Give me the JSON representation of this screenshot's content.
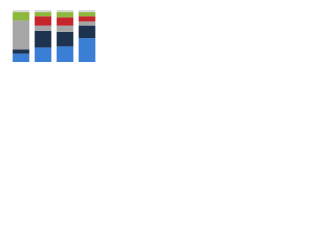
{
  "chart_data": {
    "type": "stacked-bar",
    "categories": [
      null,
      null,
      null,
      null
    ],
    "ylim": [
      0,
      100
    ],
    "series": [
      {
        "color": "#3a7fd5",
        "values": [
          16,
          28,
          30,
          46
        ]
      },
      {
        "color": "#1e3350",
        "values": [
          8,
          32,
          28,
          24
        ]
      },
      {
        "color": "#a6a6a6",
        "values": [
          56,
          10,
          12,
          8
        ]
      },
      {
        "color": "#c4262c",
        "values": [
          0,
          18,
          16,
          10
        ]
      },
      {
        "color": "#8db83c",
        "values": [
          16,
          8,
          10,
          8
        ]
      },
      {
        "color": "#d9d9d9",
        "values": [
          4,
          4,
          4,
          4
        ]
      }
    ]
  }
}
